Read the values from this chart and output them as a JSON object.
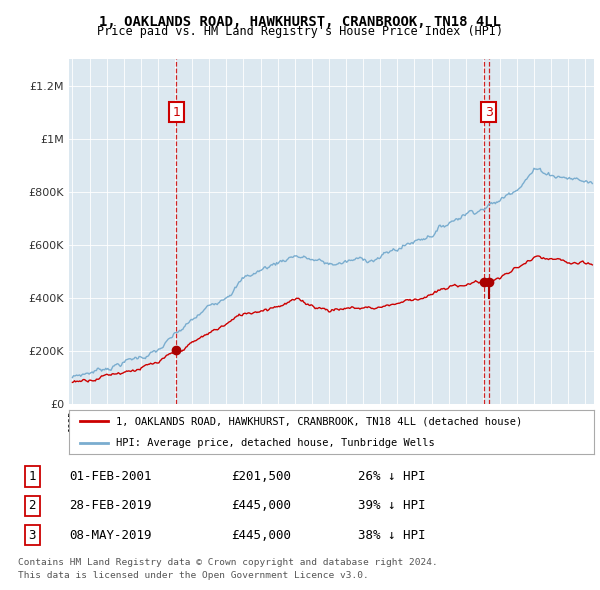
{
  "title": "1, OAKLANDS ROAD, HAWKHURST, CRANBROOK, TN18 4LL",
  "subtitle": "Price paid vs. HM Land Registry's House Price Index (HPI)",
  "hpi_label": "HPI: Average price, detached house, Tunbridge Wells",
  "property_label": "1, OAKLANDS ROAD, HAWKHURST, CRANBROOK, TN18 4LL (detached house)",
  "transactions": [
    {
      "num": 1,
      "date": "01-FEB-2001",
      "price": 201500,
      "pct": "26%",
      "dir": "↓"
    },
    {
      "num": 2,
      "date": "28-FEB-2019",
      "price": 445000,
      "pct": "39%",
      "dir": "↓"
    },
    {
      "num": 3,
      "date": "08-MAY-2019",
      "price": 445000,
      "pct": "38%",
      "dir": "↓"
    }
  ],
  "footer1": "Contains HM Land Registry data © Crown copyright and database right 2024.",
  "footer2": "This data is licensed under the Open Government Licence v3.0.",
  "property_color": "#cc0000",
  "hpi_color": "#7aadcf",
  "vline_color": "#cc0000",
  "dot_color": "#aa0000",
  "ylim": [
    0,
    1300000
  ],
  "xlim_left": 1994.8,
  "xlim_right": 2025.5,
  "background_color": "#ffffff",
  "chart_bg_color": "#dce8f0",
  "grid_color": "#ffffff"
}
